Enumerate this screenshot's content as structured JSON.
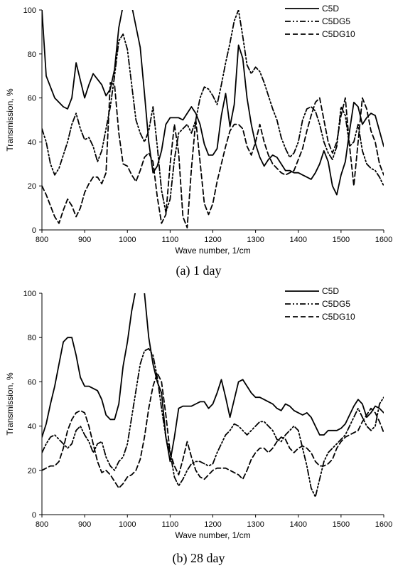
{
  "chart_data": [
    {
      "type": "line",
      "caption": "(a)  1  day",
      "xlabel": "Wave number, 1/cm",
      "ylabel": "Transmission, %",
      "xlim": [
        800,
        1600
      ],
      "ylim": [
        0,
        100
      ],
      "xticks": [
        "800",
        "900",
        "1000",
        "1100",
        "1200",
        "1300",
        "1400",
        "1500",
        "1600"
      ],
      "yticks": [
        "0",
        "20",
        "40",
        "60",
        "80",
        "100"
      ],
      "legend_position": "top-right",
      "series": [
        {
          "name": "C5D",
          "style": "solid",
          "x": [
            800,
            810,
            830,
            850,
            860,
            870,
            880,
            890,
            900,
            910,
            920,
            940,
            950,
            960,
            970,
            980,
            990,
            1000,
            1010,
            1030,
            1040,
            1050,
            1060,
            1070,
            1080,
            1090,
            1100,
            1110,
            1120,
            1130,
            1140,
            1150,
            1160,
            1170,
            1180,
            1190,
            1200,
            1210,
            1220,
            1230,
            1240,
            1250,
            1260,
            1270,
            1280,
            1290,
            1300,
            1310,
            1320,
            1330,
            1340,
            1350,
            1360,
            1370,
            1380,
            1390,
            1400,
            1410,
            1420,
            1430,
            1440,
            1450,
            1460,
            1470,
            1480,
            1490,
            1500,
            1510,
            1520,
            1530,
            1540,
            1550,
            1560,
            1570,
            1580,
            1600
          ],
          "y": [
            100,
            70,
            60,
            56,
            55,
            60,
            76,
            68,
            60,
            66,
            71,
            66,
            61,
            64,
            73,
            92,
            102,
            116,
            102,
            83,
            62,
            40,
            26,
            29,
            36,
            48,
            51,
            51,
            51,
            50,
            53,
            56,
            53,
            48,
            39,
            34,
            34,
            37,
            52,
            62,
            47,
            57,
            84,
            78,
            60,
            48,
            39,
            33,
            29,
            32,
            34,
            33,
            30,
            27,
            27,
            26,
            26,
            25,
            24,
            23,
            26,
            30,
            36,
            31,
            20,
            16,
            25,
            31,
            45,
            58,
            56,
            48,
            51,
            53,
            52,
            38
          ]
        },
        {
          "name": "C5DG5",
          "style": "dash-dot-dot",
          "x": [
            800,
            810,
            820,
            830,
            840,
            860,
            870,
            880,
            890,
            900,
            910,
            920,
            930,
            940,
            950,
            960,
            970,
            980,
            990,
            1000,
            1010,
            1020,
            1030,
            1040,
            1050,
            1060,
            1070,
            1080,
            1090,
            1100,
            1110,
            1120,
            1130,
            1140,
            1150,
            1160,
            1170,
            1180,
            1190,
            1200,
            1210,
            1220,
            1230,
            1240,
            1250,
            1260,
            1270,
            1280,
            1290,
            1300,
            1310,
            1320,
            1330,
            1340,
            1350,
            1360,
            1370,
            1380,
            1390,
            1400,
            1410,
            1420,
            1430,
            1440,
            1450,
            1460,
            1470,
            1480,
            1490,
            1500,
            1510,
            1520,
            1530,
            1540,
            1550,
            1560,
            1570,
            1580,
            1590,
            1600
          ],
          "y": [
            46,
            40,
            30,
            25,
            28,
            40,
            48,
            53,
            46,
            41,
            42,
            38,
            31,
            36,
            46,
            56,
            70,
            86,
            89,
            82,
            66,
            50,
            44,
            40,
            45,
            56,
            38,
            18,
            8,
            14,
            32,
            44,
            46,
            48,
            44,
            50,
            60,
            65,
            64,
            61,
            57,
            66,
            76,
            85,
            95,
            100,
            88,
            75,
            71,
            74,
            72,
            67,
            61,
            55,
            50,
            42,
            37,
            33,
            35,
            40,
            50,
            55,
            56,
            54,
            48,
            40,
            35,
            32,
            38,
            56,
            52,
            38,
            40,
            48,
            36,
            30,
            28,
            27,
            24,
            20
          ]
        },
        {
          "name": "C5DG10",
          "style": "dashed",
          "x": [
            800,
            810,
            820,
            830,
            840,
            850,
            860,
            870,
            880,
            890,
            900,
            910,
            920,
            930,
            940,
            950,
            960,
            970,
            980,
            990,
            1000,
            1010,
            1020,
            1030,
            1040,
            1050,
            1060,
            1070,
            1080,
            1090,
            1100,
            1110,
            1120,
            1130,
            1140,
            1150,
            1160,
            1170,
            1180,
            1190,
            1200,
            1210,
            1220,
            1230,
            1240,
            1250,
            1260,
            1270,
            1280,
            1290,
            1300,
            1310,
            1320,
            1330,
            1340,
            1350,
            1360,
            1370,
            1380,
            1390,
            1400,
            1410,
            1420,
            1430,
            1440,
            1450,
            1460,
            1470,
            1480,
            1490,
            1500,
            1510,
            1520,
            1530,
            1540,
            1550,
            1560,
            1570,
            1580,
            1590,
            1600
          ],
          "y": [
            20,
            16,
            11,
            6,
            3,
            9,
            14,
            11,
            6,
            10,
            17,
            21,
            24,
            24,
            21,
            26,
            67,
            66,
            44,
            30,
            29,
            25,
            22,
            27,
            33,
            35,
            31,
            15,
            3,
            7,
            30,
            48,
            35,
            6,
            1,
            28,
            50,
            31,
            12,
            7,
            12,
            22,
            30,
            38,
            45,
            48,
            48,
            46,
            38,
            34,
            40,
            48,
            40,
            34,
            30,
            28,
            26,
            25,
            26,
            27,
            32,
            37,
            45,
            52,
            58,
            60,
            50,
            40,
            35,
            40,
            52,
            60,
            38,
            20,
            40,
            60,
            55,
            45,
            40,
            30,
            25
          ]
        }
      ]
    },
    {
      "type": "line",
      "caption": "(b)  28  day",
      "xlabel": "Wave number, 1/cm",
      "ylabel": "Transmission, %",
      "xlim": [
        800,
        1600
      ],
      "ylim": [
        0,
        100
      ],
      "xticks": [
        "800",
        "900",
        "1000",
        "1100",
        "1200",
        "1300",
        "1400",
        "1500",
        "1600"
      ],
      "yticks": [
        "0",
        "20",
        "40",
        "60",
        "80",
        "100"
      ],
      "legend_position": "top-right",
      "series": [
        {
          "name": "C5D",
          "style": "solid",
          "x": [
            800,
            810,
            820,
            830,
            840,
            850,
            860,
            870,
            880,
            890,
            900,
            910,
            920,
            930,
            940,
            950,
            960,
            970,
            980,
            990,
            1000,
            1010,
            1020,
            1030,
            1040,
            1050,
            1060,
            1070,
            1080,
            1090,
            1100,
            1110,
            1120,
            1130,
            1140,
            1150,
            1160,
            1170,
            1180,
            1190,
            1200,
            1210,
            1220,
            1230,
            1240,
            1250,
            1260,
            1270,
            1280,
            1290,
            1300,
            1310,
            1320,
            1330,
            1340,
            1350,
            1360,
            1370,
            1380,
            1390,
            1400,
            1410,
            1420,
            1430,
            1440,
            1450,
            1460,
            1470,
            1480,
            1490,
            1500,
            1510,
            1520,
            1530,
            1540,
            1550,
            1560,
            1570,
            1580,
            1590,
            1600
          ],
          "y": [
            35,
            41,
            50,
            58,
            68,
            78,
            80,
            80,
            72,
            62,
            58,
            58,
            57,
            56,
            52,
            45,
            43,
            43,
            50,
            67,
            78,
            92,
            102,
            110,
            100,
            80,
            68,
            60,
            55,
            35,
            24,
            35,
            48,
            49,
            49,
            49,
            50,
            51,
            51,
            48,
            50,
            55,
            61,
            53,
            44,
            52,
            60,
            61,
            58,
            55,
            53,
            53,
            52,
            51,
            50,
            48,
            47,
            50,
            49,
            47,
            46,
            45,
            46,
            44,
            40,
            36,
            36,
            38,
            38,
            38,
            39,
            41,
            45,
            49,
            52,
            50,
            44,
            46,
            49,
            48,
            46
          ]
        },
        {
          "name": "C5DG5",
          "style": "dash-dot-dot",
          "x": [
            800,
            810,
            820,
            830,
            840,
            850,
            860,
            870,
            880,
            890,
            900,
            910,
            920,
            930,
            940,
            950,
            960,
            970,
            980,
            990,
            1000,
            1010,
            1020,
            1030,
            1040,
            1050,
            1060,
            1070,
            1080,
            1090,
            1100,
            1110,
            1120,
            1130,
            1140,
            1150,
            1160,
            1170,
            1180,
            1190,
            1200,
            1210,
            1220,
            1230,
            1240,
            1250,
            1260,
            1270,
            1280,
            1290,
            1300,
            1310,
            1320,
            1330,
            1340,
            1350,
            1360,
            1370,
            1380,
            1390,
            1400,
            1410,
            1420,
            1430,
            1440,
            1450,
            1460,
            1470,
            1480,
            1490,
            1500,
            1510,
            1520,
            1530,
            1540,
            1550,
            1560,
            1570,
            1580,
            1590,
            1600
          ],
          "y": [
            28,
            32,
            35,
            36,
            34,
            32,
            30,
            32,
            38,
            40,
            36,
            33,
            28,
            32,
            33,
            26,
            22,
            20,
            24,
            26,
            32,
            44,
            56,
            68,
            74,
            75,
            72,
            62,
            48,
            35,
            28,
            17,
            13,
            16,
            20,
            23,
            24,
            24,
            23,
            22,
            23,
            28,
            32,
            36,
            38,
            41,
            40,
            38,
            36,
            38,
            40,
            42,
            42,
            40,
            38,
            34,
            33,
            36,
            38,
            40,
            38,
            30,
            22,
            12,
            8,
            16,
            24,
            28,
            30,
            32,
            34,
            36,
            40,
            44,
            48,
            44,
            40,
            38,
            40,
            50,
            53
          ]
        },
        {
          "name": "C5DG10",
          "style": "dashed",
          "x": [
            800,
            810,
            820,
            830,
            840,
            850,
            860,
            870,
            880,
            890,
            900,
            910,
            920,
            930,
            940,
            950,
            960,
            970,
            980,
            990,
            1000,
            1010,
            1020,
            1030,
            1040,
            1050,
            1060,
            1070,
            1080,
            1090,
            1100,
            1110,
            1120,
            1130,
            1140,
            1150,
            1160,
            1170,
            1180,
            1190,
            1200,
            1210,
            1220,
            1230,
            1240,
            1250,
            1260,
            1270,
            1280,
            1290,
            1300,
            1310,
            1320,
            1330,
            1340,
            1350,
            1360,
            1370,
            1380,
            1390,
            1400,
            1410,
            1420,
            1430,
            1440,
            1450,
            1460,
            1470,
            1480,
            1490,
            1500,
            1510,
            1520,
            1530,
            1540,
            1550,
            1560,
            1570,
            1580,
            1590,
            1600
          ],
          "y": [
            20,
            21,
            22,
            22,
            24,
            30,
            38,
            43,
            46,
            47,
            46,
            40,
            32,
            24,
            19,
            20,
            18,
            15,
            12,
            14,
            17,
            18,
            20,
            25,
            35,
            48,
            58,
            64,
            60,
            45,
            28,
            22,
            18,
            25,
            33,
            26,
            20,
            17,
            16,
            18,
            20,
            21,
            21,
            21,
            20,
            19,
            18,
            16,
            20,
            25,
            28,
            30,
            30,
            28,
            30,
            33,
            35,
            34,
            30,
            28,
            30,
            31,
            30,
            28,
            24,
            22,
            22,
            23,
            25,
            30,
            33,
            35,
            36,
            37,
            38,
            42,
            45,
            48,
            46,
            42,
            37
          ]
        }
      ]
    }
  ]
}
